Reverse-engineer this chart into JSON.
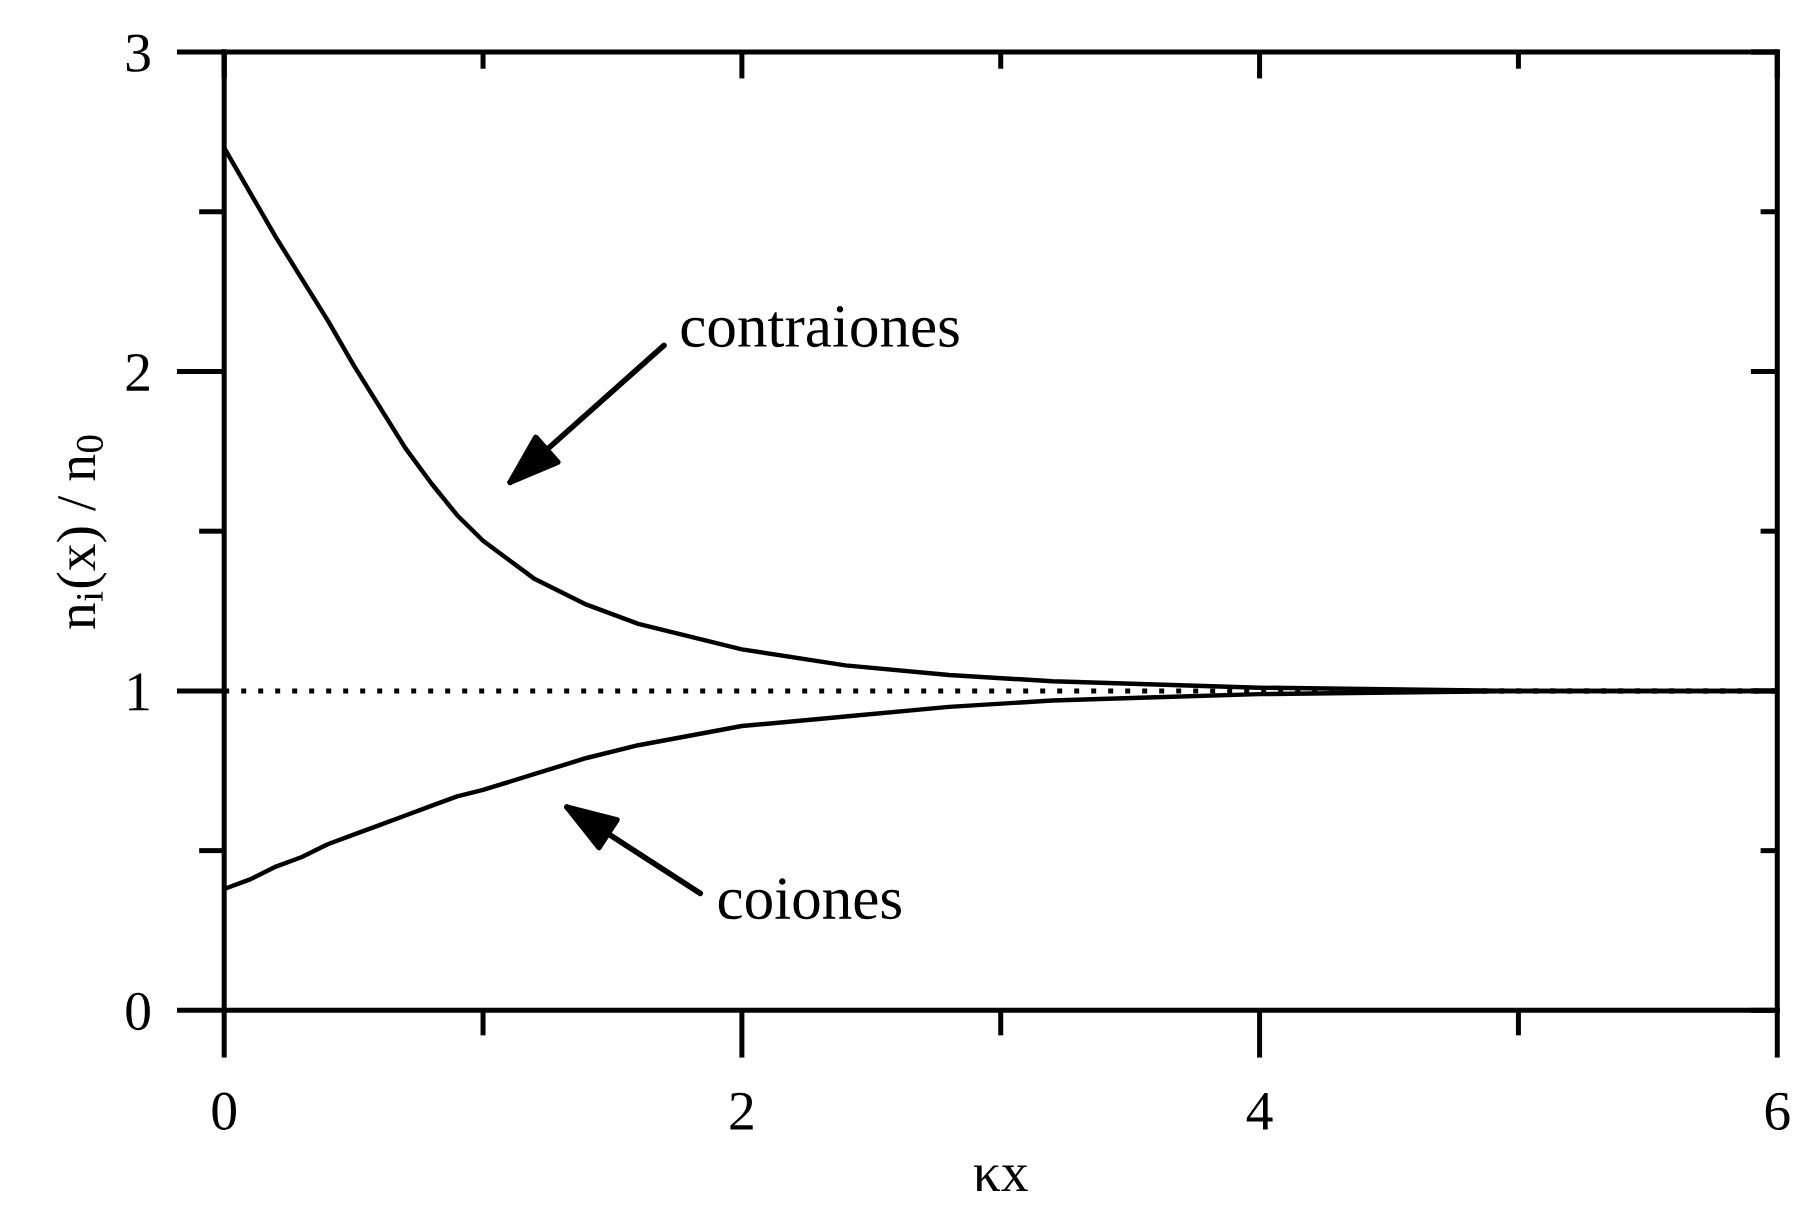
{
  "chart_data": {
    "type": "line",
    "xlabel": "κx",
    "ylabel": "n$_{i}$(x) / n$_{0}$",
    "x": [
      0,
      0.1,
      0.2,
      0.3,
      0.4,
      0.5,
      0.6,
      0.7,
      0.8,
      0.9,
      1.0,
      1.2,
      1.4,
      1.6,
      2.0,
      2.4,
      2.8,
      3.2,
      3.6,
      4.0,
      5.0,
      6.0
    ],
    "series": [
      {
        "color": "#000000",
        "values": [
          2.7,
          2.56,
          2.42,
          2.29,
          2.16,
          2.02,
          1.89,
          1.76,
          1.65,
          1.55,
          1.47,
          1.35,
          1.27,
          1.21,
          1.13,
          1.08,
          1.05,
          1.03,
          1.02,
          1.01,
          1.0,
          1.0
        ]
      },
      {
        "color": "#000000",
        "values": [
          0.38,
          0.41,
          0.45,
          0.48,
          0.52,
          0.55,
          0.58,
          0.61,
          0.64,
          0.67,
          0.69,
          0.74,
          0.79,
          0.83,
          0.89,
          0.92,
          0.95,
          0.97,
          0.98,
          0.99,
          1.0,
          1.0
        ]
      }
    ],
    "xlim": [
      0,
      6
    ],
    "ylim": [
      0,
      3
    ],
    "xticks": [
      0,
      {
        "value": 1,
        "label": null
      },
      2,
      {
        "value": 3,
        "label": null
      },
      4,
      {
        "value": 5,
        "label": null
      },
      6
    ],
    "yticks": [
      0,
      {
        "value": 0.5,
        "label": null
      },
      1,
      {
        "value": 1.5,
        "label": null
      },
      2,
      {
        "value": 2.5,
        "label": null
      },
      3
    ],
    "ref_lines": [
      {
        "axis": "y",
        "value": 1,
        "color": "#000000",
        "line_style": "dotted"
      }
    ],
    "annotations": [
      "contraiones",
      "coiones"
    ],
    "line_style": "solid"
  }
}
